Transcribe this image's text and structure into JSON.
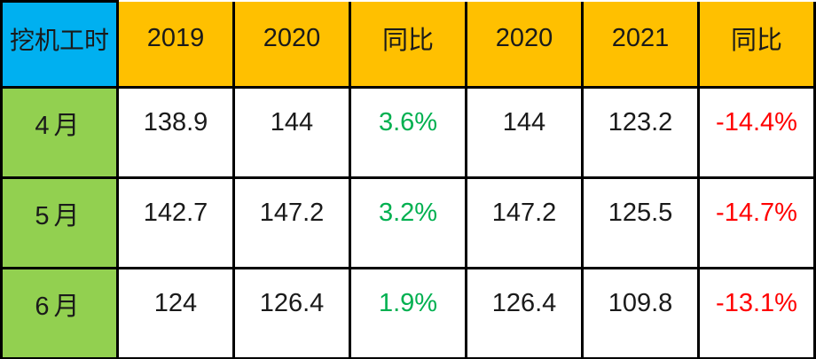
{
  "chart_data": {
    "type": "table",
    "corner_label": "挖机工时",
    "columns": [
      "2019",
      "2020",
      "同比",
      "2020",
      "2021",
      "同比"
    ],
    "rows": [
      {
        "label": "4月",
        "values": [
          "138.9",
          "144",
          "3.6%",
          "144",
          "123.2",
          "-14.4%"
        ]
      },
      {
        "label": "5月",
        "values": [
          "142.7",
          "147.2",
          "3.2%",
          "147.2",
          "125.5",
          "-14.7%"
        ]
      },
      {
        "label": "6月",
        "values": [
          "124",
          "126.4",
          "1.9%",
          "126.4",
          "109.8",
          "-13.1%"
        ]
      }
    ]
  },
  "colors": {
    "header_corner_bg": "#00B0F0",
    "header_bg": "#FFC000",
    "row_label_bg": "#92D050",
    "positive_text": "#00B050",
    "negative_text": "#FF0000",
    "border": "#000000",
    "cell_bg": "#FFFFFF"
  }
}
